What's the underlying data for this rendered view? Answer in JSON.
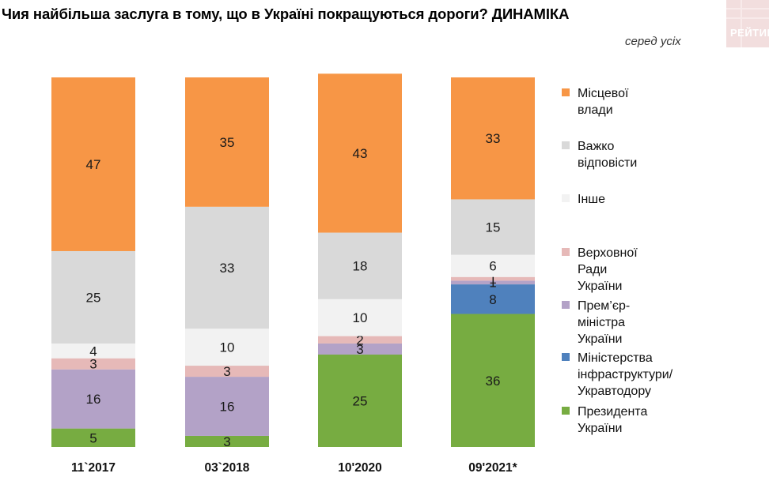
{
  "title": "Чия найбільша заслуга в тому, що в Україні покращуються дороги? ДИНАМІКА",
  "subtitle": "серед усіх",
  "logo_text": "РЕЙТИНГ",
  "colors": {
    "local": "#f79646",
    "hard": "#d9d9d9",
    "other": "#f2f2f2",
    "rada": "#e6b9b8",
    "pm": "#b3a2c7",
    "ministry": "#4f81bd",
    "president": "#77ac41"
  },
  "legend": [
    {
      "key": "local",
      "label": "Місцевої влади"
    },
    {
      "key": "hard",
      "label": "Важко відповісти"
    },
    {
      "key": "other",
      "label": "Інше"
    },
    {
      "key": "rada",
      "label": "Верховної Ради України"
    },
    {
      "key": "pm",
      "label": "Прем’єр-міністра України"
    },
    {
      "key": "ministry",
      "label": "Міністерства\nінфраструктури/Укравтодору"
    },
    {
      "key": "president",
      "label": "Президента України"
    }
  ],
  "chart_data": {
    "type": "bar",
    "stacked": true,
    "categories": [
      "11`2017",
      "03`2018",
      "10'2020",
      "09'2021*"
    ],
    "series": [
      {
        "name": "Президента України",
        "key": "president",
        "values": [
          5,
          3,
          25,
          36
        ]
      },
      {
        "name": "Міністерства інфраструктури/Укравтодору",
        "key": "ministry",
        "values": [
          0,
          0,
          0,
          8
        ]
      },
      {
        "name": "Прем’єр-міністра України",
        "key": "pm",
        "values": [
          16,
          16,
          3,
          1
        ]
      },
      {
        "name": "Верховної Ради України",
        "key": "rada",
        "values": [
          3,
          3,
          2,
          1
        ]
      },
      {
        "name": "Інше",
        "key": "other",
        "values": [
          4,
          10,
          10,
          6
        ]
      },
      {
        "name": "Важко відповісти",
        "key": "hard",
        "values": [
          25,
          33,
          18,
          15
        ]
      },
      {
        "name": "Місцевої влади",
        "key": "local",
        "values": [
          47,
          35,
          43,
          33
        ]
      }
    ],
    "ylim": [
      0,
      100
    ],
    "legend_position": "right",
    "grid": false
  }
}
